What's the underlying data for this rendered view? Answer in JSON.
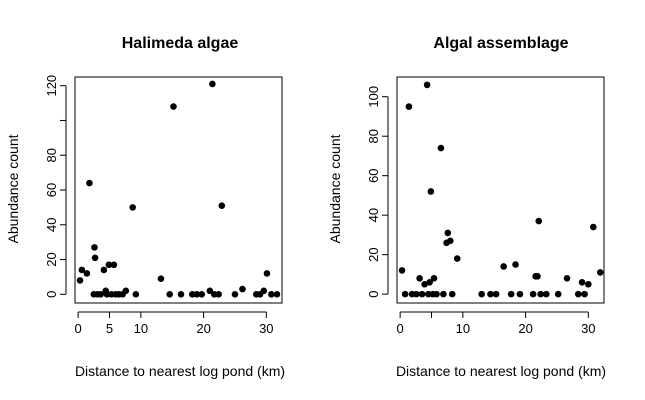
{
  "chart_data": [
    {
      "type": "scatter",
      "title": "Halimeda algae",
      "xlabel": "Distance to nearest log pond (km)",
      "ylabel": "Abundance count",
      "xlim": [
        -0.5,
        32.5
      ],
      "ylim": [
        -5,
        125
      ],
      "xticks": [
        0,
        5,
        10,
        20,
        30
      ],
      "xtick_labels": [
        "0",
        "5",
        "10",
        "20",
        "30"
      ],
      "yticks": [
        0,
        20,
        40,
        60,
        80,
        100,
        120
      ],
      "ytick_labels": [
        "0",
        "20",
        "40",
        "60",
        "80",
        "",
        "120"
      ],
      "grid": false,
      "points": [
        {
          "x": 0.3,
          "y": 8
        },
        {
          "x": 0.6,
          "y": 14
        },
        {
          "x": 1.4,
          "y": 12
        },
        {
          "x": 1.8,
          "y": 64
        },
        {
          "x": 2.6,
          "y": 27
        },
        {
          "x": 2.7,
          "y": 21
        },
        {
          "x": 2.5,
          "y": 0
        },
        {
          "x": 3.1,
          "y": 0
        },
        {
          "x": 3.6,
          "y": 0
        },
        {
          "x": 4.1,
          "y": 14
        },
        {
          "x": 4.4,
          "y": 2
        },
        {
          "x": 4.6,
          "y": 0
        },
        {
          "x": 4.9,
          "y": 17
        },
        {
          "x": 5.3,
          "y": 0
        },
        {
          "x": 5.7,
          "y": 17
        },
        {
          "x": 6.0,
          "y": 0
        },
        {
          "x": 6.5,
          "y": 0
        },
        {
          "x": 7.1,
          "y": 0
        },
        {
          "x": 7.6,
          "y": 2
        },
        {
          "x": 8.7,
          "y": 50
        },
        {
          "x": 9.2,
          "y": 0
        },
        {
          "x": 13.2,
          "y": 9
        },
        {
          "x": 14.6,
          "y": 0
        },
        {
          "x": 15.2,
          "y": 108
        },
        {
          "x": 16.4,
          "y": 0
        },
        {
          "x": 18.2,
          "y": 0
        },
        {
          "x": 18.9,
          "y": 0
        },
        {
          "x": 19.7,
          "y": 0
        },
        {
          "x": 21.0,
          "y": 2
        },
        {
          "x": 21.4,
          "y": 121
        },
        {
          "x": 21.7,
          "y": 0
        },
        {
          "x": 22.4,
          "y": 0
        },
        {
          "x": 22.9,
          "y": 51
        },
        {
          "x": 25.0,
          "y": 0
        },
        {
          "x": 26.2,
          "y": 3
        },
        {
          "x": 28.4,
          "y": 0
        },
        {
          "x": 29.0,
          "y": 0
        },
        {
          "x": 29.6,
          "y": 2
        },
        {
          "x": 30.1,
          "y": 12
        },
        {
          "x": 30.8,
          "y": 0
        },
        {
          "x": 31.7,
          "y": 0
        }
      ]
    },
    {
      "type": "scatter",
      "title": "Algal assemblage",
      "xlabel": "Distance to nearest log pond (km)",
      "ylabel": "Abundance count",
      "xlim": [
        -0.5,
        32.5
      ],
      "ylim": [
        -4.5,
        110
      ],
      "xticks": [
        0,
        5,
        10,
        20,
        30
      ],
      "xtick_labels": [
        "0",
        "",
        "10",
        "20",
        "30"
      ],
      "yticks": [
        0,
        20,
        40,
        60,
        80,
        100
      ],
      "ytick_labels": [
        "0",
        "20",
        "40",
        "60",
        "80",
        "100"
      ],
      "grid": false,
      "points": [
        {
          "x": 0.3,
          "y": 12
        },
        {
          "x": 0.8,
          "y": 0
        },
        {
          "x": 1.4,
          "y": 95
        },
        {
          "x": 1.9,
          "y": 0
        },
        {
          "x": 2.6,
          "y": 0
        },
        {
          "x": 3.1,
          "y": 8
        },
        {
          "x": 3.5,
          "y": 0
        },
        {
          "x": 3.9,
          "y": 5
        },
        {
          "x": 4.3,
          "y": 106
        },
        {
          "x": 4.5,
          "y": 0
        },
        {
          "x": 4.7,
          "y": 6
        },
        {
          "x": 4.9,
          "y": 52
        },
        {
          "x": 5.2,
          "y": 0
        },
        {
          "x": 5.4,
          "y": 8
        },
        {
          "x": 5.8,
          "y": 0
        },
        {
          "x": 6.5,
          "y": 74
        },
        {
          "x": 6.9,
          "y": 0
        },
        {
          "x": 7.4,
          "y": 26
        },
        {
          "x": 7.6,
          "y": 31
        },
        {
          "x": 8.0,
          "y": 27
        },
        {
          "x": 8.3,
          "y": 0
        },
        {
          "x": 9.1,
          "y": 18
        },
        {
          "x": 13.0,
          "y": 0
        },
        {
          "x": 14.4,
          "y": 0
        },
        {
          "x": 15.3,
          "y": 0
        },
        {
          "x": 16.5,
          "y": 14
        },
        {
          "x": 17.7,
          "y": 0
        },
        {
          "x": 18.4,
          "y": 15
        },
        {
          "x": 19.1,
          "y": 0
        },
        {
          "x": 21.2,
          "y": 0
        },
        {
          "x": 21.6,
          "y": 9
        },
        {
          "x": 21.9,
          "y": 9
        },
        {
          "x": 22.1,
          "y": 37
        },
        {
          "x": 22.4,
          "y": 0
        },
        {
          "x": 23.3,
          "y": 0
        },
        {
          "x": 25.2,
          "y": 0
        },
        {
          "x": 26.6,
          "y": 8
        },
        {
          "x": 28.4,
          "y": 0
        },
        {
          "x": 29.0,
          "y": 6
        },
        {
          "x": 29.4,
          "y": 0
        },
        {
          "x": 30.0,
          "y": 5
        },
        {
          "x": 30.8,
          "y": 34
        },
        {
          "x": 31.9,
          "y": 11
        }
      ]
    }
  ]
}
